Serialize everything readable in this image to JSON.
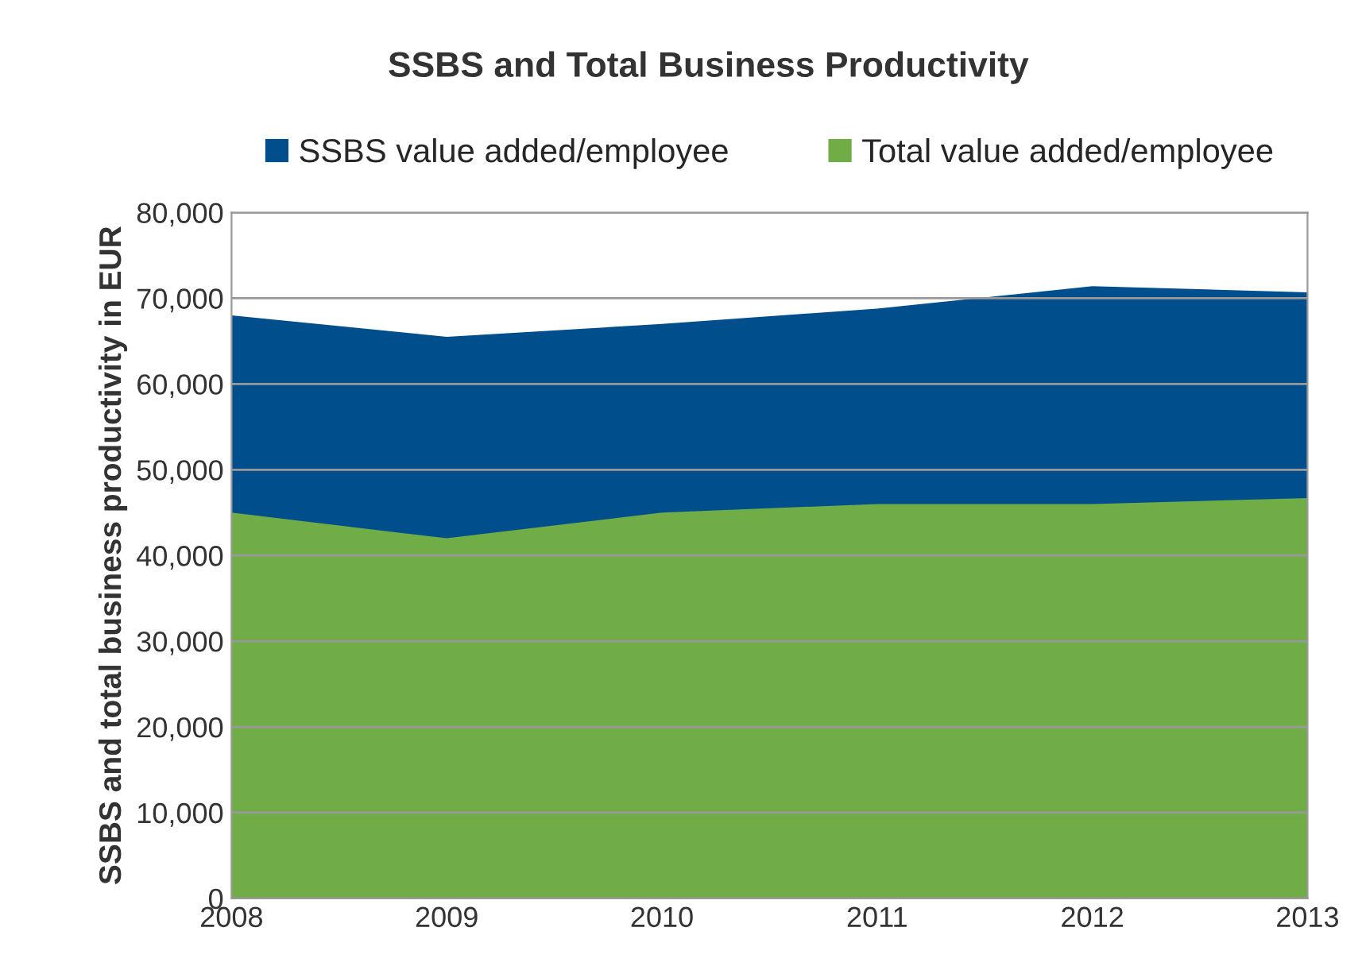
{
  "chart_data": {
    "type": "area",
    "title": "SSBS and Total Business Productivity",
    "ylabel": "SSBS and total business productivity in EUR",
    "x": [
      2008,
      2009,
      2010,
      2011,
      2012,
      2013
    ],
    "series": [
      {
        "name": "SSBS value added/employee",
        "color": "#004f8c",
        "values": [
          68000,
          65500,
          67000,
          68800,
          71400,
          70700
        ]
      },
      {
        "name": "Total value added/employee",
        "color": "#70ad47",
        "values": [
          45000,
          42000,
          45000,
          46000,
          46000,
          46700
        ]
      }
    ],
    "xlim": [
      2008,
      2013
    ],
    "xticks": [
      2008,
      2009,
      2010,
      2011,
      2012,
      2013
    ],
    "ylim": [
      0,
      80000
    ],
    "yticks": [
      {
        "value": 0,
        "label": "0"
      },
      {
        "value": 10000,
        "label": "10,000"
      },
      {
        "value": 20000,
        "label": "20,000"
      },
      {
        "value": 30000,
        "label": "30,000"
      },
      {
        "value": 40000,
        "label": "40,000"
      },
      {
        "value": 50000,
        "label": "50,000"
      },
      {
        "value": 60000,
        "label": "60,000"
      },
      {
        "value": 70000,
        "label": "70,000"
      },
      {
        "value": 80000,
        "label": "80,000"
      }
    ],
    "grid": "y",
    "legend": "top"
  }
}
